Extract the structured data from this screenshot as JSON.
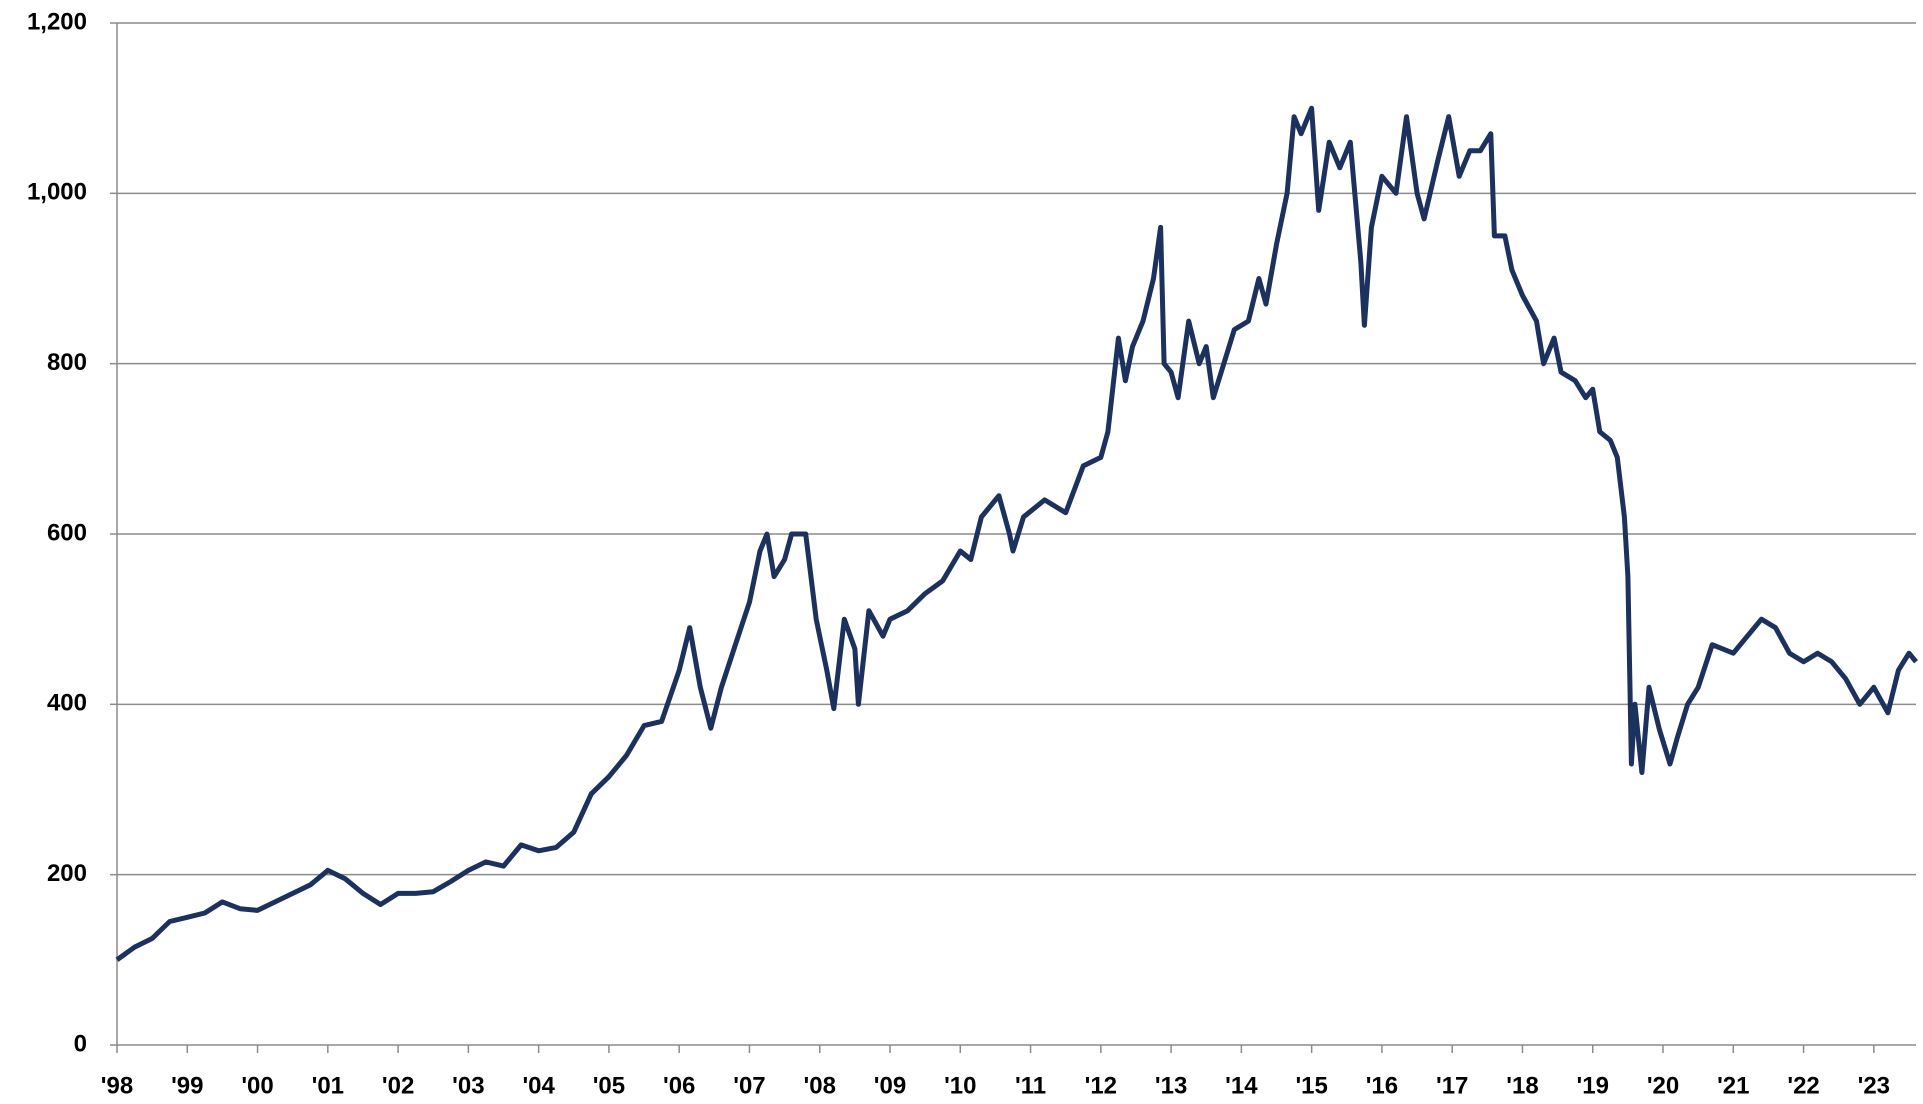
{
  "chart_data": {
    "type": "line",
    "x": [
      1998.0,
      1998.25,
      1998.5,
      1998.75,
      1999.0,
      1999.25,
      1999.5,
      1999.75,
      2000.0,
      2000.25,
      2000.5,
      2000.75,
      2001.0,
      2001.25,
      2001.5,
      2001.75,
      2002.0,
      2002.25,
      2002.5,
      2002.75,
      2003.0,
      2003.25,
      2003.5,
      2003.75,
      2004.0,
      2004.25,
      2004.5,
      2004.75,
      2005.0,
      2005.25,
      2005.5,
      2005.75,
      2006.0,
      2006.15,
      2006.3,
      2006.45,
      2006.6,
      2006.8,
      2007.0,
      2007.15,
      2007.25,
      2007.35,
      2007.5,
      2007.6,
      2007.8,
      2007.95,
      2008.1,
      2008.2,
      2008.35,
      2008.5,
      2008.55,
      2008.7,
      2008.9,
      2009.0,
      2009.25,
      2009.5,
      2009.75,
      2010.0,
      2010.15,
      2010.3,
      2010.55,
      2010.7,
      2010.75,
      2010.9,
      2011.2,
      2011.5,
      2011.75,
      2012.0,
      2012.1,
      2012.25,
      2012.35,
      2012.45,
      2012.6,
      2012.75,
      2012.85,
      2012.9,
      2013.0,
      2013.1,
      2013.25,
      2013.4,
      2013.5,
      2013.6,
      2013.75,
      2013.9,
      2014.1,
      2014.25,
      2014.35,
      2014.5,
      2014.65,
      2014.75,
      2014.85,
      2015.0,
      2015.1,
      2015.25,
      2015.4,
      2015.55,
      2015.7,
      2015.75,
      2015.85,
      2016.0,
      2016.2,
      2016.35,
      2016.5,
      2016.6,
      2016.8,
      2016.95,
      2017.1,
      2017.25,
      2017.4,
      2017.55,
      2017.6,
      2017.75,
      2017.85,
      2018.0,
      2018.2,
      2018.3,
      2018.45,
      2018.55,
      2018.75,
      2018.9,
      2019.0,
      2019.1,
      2019.25,
      2019.35,
      2019.45,
      2019.5,
      2019.55,
      2019.6,
      2019.7,
      2019.8,
      2019.95,
      2020.1,
      2020.2,
      2020.35,
      2020.5,
      2020.7,
      2021.0,
      2021.2,
      2021.4,
      2021.6,
      2021.8,
      2022.0,
      2022.2,
      2022.4,
      2022.6,
      2022.8,
      2023.0,
      2023.2,
      2023.35,
      2023.5,
      2023.6
    ],
    "series": [
      {
        "color": "#1c315e",
        "values": [
          100,
          115,
          125,
          145,
          150,
          155,
          168,
          160,
          158,
          168,
          178,
          188,
          205,
          195,
          178,
          165,
          178,
          178,
          180,
          192,
          205,
          215,
          210,
          235,
          228,
          232,
          250,
          295,
          315,
          340,
          375,
          380,
          440,
          490,
          420,
          372,
          420,
          470,
          520,
          580,
          600,
          550,
          570,
          600,
          600,
          500,
          440,
          395,
          500,
          465,
          400,
          510,
          480,
          500,
          510,
          530,
          545,
          580,
          570,
          620,
          645,
          600,
          580,
          620,
          640,
          625,
          680,
          690,
          720,
          830,
          780,
          820,
          850,
          900,
          960,
          800,
          790,
          760,
          850,
          800,
          820,
          760,
          800,
          840,
          850,
          900,
          870,
          940,
          1000,
          1090,
          1070,
          1100,
          980,
          1060,
          1030,
          1060,
          920,
          845,
          960,
          1020,
          1000,
          1090,
          1000,
          970,
          1040,
          1090,
          1020,
          1050,
          1050,
          1070,
          950,
          950,
          910,
          880,
          850,
          800,
          830,
          790,
          780,
          760,
          770,
          720,
          710,
          690,
          620,
          550,
          330,
          400,
          320,
          420,
          370,
          330,
          360,
          400,
          420,
          470,
          460,
          480,
          500,
          490,
          460,
          450,
          460,
          450,
          430,
          400,
          420,
          390,
          440,
          460,
          450
        ]
      }
    ],
    "xlim": [
      1998,
      2023.6
    ],
    "xticks": [
      {
        "value": 1998,
        "label": "'98"
      },
      {
        "value": 1999,
        "label": "'99"
      },
      {
        "value": 2000,
        "label": "'00"
      },
      {
        "value": 2001,
        "label": "'01"
      },
      {
        "value": 2002,
        "label": "'02"
      },
      {
        "value": 2003,
        "label": "'03"
      },
      {
        "value": 2004,
        "label": "'04"
      },
      {
        "value": 2005,
        "label": "'05"
      },
      {
        "value": 2006,
        "label": "'06"
      },
      {
        "value": 2007,
        "label": "'07"
      },
      {
        "value": 2008,
        "label": "'08"
      },
      {
        "value": 2009,
        "label": "'09"
      },
      {
        "value": 2010,
        "label": "'10"
      },
      {
        "value": 2011,
        "label": "'11"
      },
      {
        "value": 2012,
        "label": "'12"
      },
      {
        "value": 2013,
        "label": "'13"
      },
      {
        "value": 2014,
        "label": "'14"
      },
      {
        "value": 2015,
        "label": "'15"
      },
      {
        "value": 2016,
        "label": "'16"
      },
      {
        "value": 2017,
        "label": "'17"
      },
      {
        "value": 2018,
        "label": "'18"
      },
      {
        "value": 2019,
        "label": "'19"
      },
      {
        "value": 2020,
        "label": "'20"
      },
      {
        "value": 2021,
        "label": "'21"
      },
      {
        "value": 2022,
        "label": "'22"
      },
      {
        "value": 2023,
        "label": "'23"
      }
    ],
    "ylim": [
      0,
      1200
    ],
    "yticks": [
      0,
      200,
      400,
      600,
      800,
      {
        "value": 1000,
        "label": "1,000"
      },
      {
        "value": 1200,
        "label": "1,200"
      }
    ],
    "grid": true
  }
}
